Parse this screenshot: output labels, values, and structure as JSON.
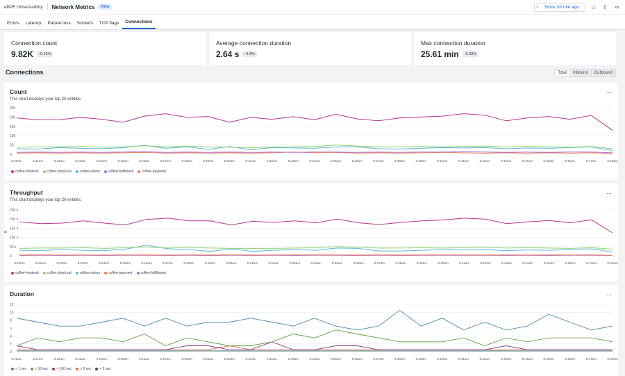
{
  "app": {
    "crumb": "eBPF Observability",
    "title": "Network Metrics",
    "badge": "New"
  },
  "toolbar": {
    "back_icon": "chevron-left-icon",
    "time_range": "Since 30 min ago"
  },
  "tabs": [
    "Errors",
    "Latency",
    "Packet loss",
    "Sockets",
    "TCP flags",
    "Connections"
  ],
  "active_tab": 5,
  "kpis": [
    {
      "label": "Connection count",
      "value": "9.82K",
      "delta": "-0.19%"
    },
    {
      "label": "Average connection duration",
      "value": "2.64 s",
      "delta": "-4.4%"
    },
    {
      "label": "Max connection duration",
      "value": "25.61 min",
      "delta": "-5.03%"
    }
  ],
  "section": {
    "title": "Connections",
    "toggle": [
      "Total",
      "Inbound",
      "Outbound"
    ]
  },
  "charts_text": {
    "count_title": "Count",
    "count_sub": "This chart displays your top 20 entities.",
    "throughput_title": "Throughput",
    "throughput_sub": "This chart displays your top 20 entities.",
    "duration_title": "Duration",
    "more": "..."
  },
  "chart_data": [
    {
      "type": "line",
      "title": "Count",
      "x": [
        "8:20am",
        "8:21am",
        "8:22am",
        "8:23am",
        "8:24am",
        "8:25am",
        "8:26am",
        "8:27am",
        "8:28am",
        "8:29am",
        "8:30am",
        "8:31am",
        "8:32am",
        "8:33am",
        "8:34am",
        "8:35am",
        "8:36am",
        "8:37am",
        "8:38am",
        "8:39am",
        "8:40am",
        "8:41am",
        "8:42am",
        "8:43am",
        "8:44am",
        "8:45am",
        "8:46am",
        "8:47am",
        "8:48am"
      ],
      "yticks": [
        "250",
        "200",
        "150",
        "100",
        "50",
        "0"
      ],
      "ylim": [
        0,
        250
      ],
      "series": [
        {
          "name": "coffee-frontend",
          "color": "#b4348f",
          "values": [
            195,
            185,
            186,
            198,
            188,
            172,
            205,
            218,
            198,
            203,
            172,
            198,
            188,
            202,
            186,
            215,
            190,
            180,
            195,
            200,
            205,
            218,
            210,
            180,
            195,
            203,
            188,
            209,
            128
          ]
        },
        {
          "name": "coffee-checkout",
          "color": "#8fd16b",
          "values": [
            38,
            40,
            40,
            42,
            38,
            40,
            46,
            40,
            44,
            40,
            38,
            36,
            38,
            40,
            42,
            50,
            44,
            40,
            40,
            42,
            40,
            42,
            44,
            40,
            42,
            40,
            38,
            42,
            30
          ]
        },
        {
          "name": "coffee-orders",
          "color": "#56b6d6",
          "values": [
            30,
            28,
            36,
            32,
            30,
            36,
            48,
            32,
            40,
            26,
            42,
            24,
            36,
            34,
            32,
            40,
            40,
            30,
            28,
            32,
            36,
            34,
            36,
            30,
            34,
            32,
            36,
            40,
            20
          ]
        },
        {
          "name": "coffee-fulfillment",
          "color": "#a76fd0",
          "values": [
            10,
            12,
            10,
            12,
            10,
            12,
            14,
            10,
            12,
            10,
            12,
            10,
            12,
            10,
            12,
            12,
            10,
            12,
            10,
            12,
            12,
            14,
            12,
            10,
            12,
            10,
            12,
            12,
            8
          ]
        },
        {
          "name": "coffee-payment",
          "color": "#f07f5a",
          "values": [
            6,
            8,
            6,
            8,
            6,
            8,
            10,
            6,
            8,
            6,
            8,
            6,
            8,
            12,
            8,
            10,
            6,
            8,
            6,
            8,
            10,
            8,
            6,
            8,
            6,
            8,
            6,
            8,
            4
          ]
        }
      ],
      "xlabel_note": "8:4"
    },
    {
      "type": "line",
      "title": "Throughput",
      "x": [
        "8:20am",
        "8:21am",
        "8:22am",
        "8:23am",
        "8:24am",
        "8:25am",
        "8:26am",
        "8:27am",
        "8:28am",
        "8:29am",
        "8:30am",
        "8:31am",
        "8:32am",
        "8:33am",
        "8:34am",
        "8:35am",
        "8:36am",
        "8:37am",
        "8:38am",
        "8:39am",
        "8:40am",
        "8:41am",
        "8:42am",
        "8:43am",
        "8:44am",
        "8:45am",
        "8:46am",
        "8:47am",
        "8:48am"
      ],
      "yticks": [
        "250 k",
        "200 k",
        "150 k",
        "100 k",
        "50 k",
        "0"
      ],
      "ylim": [
        0,
        250000
      ],
      "ylabel": "B",
      "series": [
        {
          "name": "coffee-frontend",
          "color": "#b4348f",
          "values": [
            185000,
            175000,
            178000,
            190000,
            178000,
            168000,
            198000,
            205000,
            190000,
            190000,
            168000,
            188000,
            182000,
            190000,
            180000,
            200000,
            180000,
            170000,
            182000,
            190000,
            195000,
            205000,
            200000,
            175000,
            185000,
            192000,
            180000,
            196000,
            125000
          ]
        },
        {
          "name": "coffee-checkout",
          "color": "#8fd16b",
          "values": [
            40000,
            42000,
            42000,
            44000,
            40000,
            44000,
            48000,
            42000,
            46000,
            42000,
            40000,
            40000,
            40000,
            42000,
            44000,
            50000,
            46000,
            42000,
            42000,
            44000,
            42000,
            44000,
            46000,
            42000,
            44000,
            42000,
            40000,
            44000,
            36000
          ]
        },
        {
          "name": "coffee-orders",
          "color": "#56b6d6",
          "values": [
            30000,
            28000,
            34000,
            30000,
            28000,
            36000,
            58000,
            38000,
            34000,
            24000,
            38000,
            24000,
            30000,
            34000,
            30000,
            42000,
            40000,
            26000,
            26000,
            30000,
            34000,
            32000,
            34000,
            28000,
            32000,
            30000,
            34000,
            38000,
            20000
          ]
        },
        {
          "name": "coffee-payment",
          "color": "#f07f5a",
          "values": [
            4000,
            4500,
            4000,
            4500,
            4000,
            4500,
            5000,
            4000,
            4500,
            4000,
            4500,
            4000,
            4500,
            5000,
            4500,
            5000,
            4000,
            4500,
            4000,
            4500,
            5000,
            4500,
            4000,
            4500,
            4000,
            4500,
            4000,
            4500,
            3000
          ]
        },
        {
          "name": "coffee-fulfillment",
          "color": "#a76fd0",
          "values": [
            2000,
            2500,
            2000,
            2500,
            2000,
            2500,
            3000,
            2000,
            2500,
            2000,
            2500,
            2000,
            2500,
            2000,
            2500,
            2500,
            2000,
            2500,
            2000,
            2500,
            2500,
            3000,
            2500,
            2000,
            2500,
            2000,
            2500,
            2500,
            1500
          ]
        }
      ]
    },
    {
      "type": "line",
      "title": "Duration",
      "x": [
        "8:20am",
        "8:21am",
        "8:22am",
        "8:23am",
        "8:24am",
        "8:25am",
        "8:26am",
        "8:27am",
        "8:28am",
        "8:29am",
        "8:30am",
        "8:31am",
        "8:32am",
        "8:33am",
        "8:34am",
        "8:35am",
        "8:36am",
        "8:37am",
        "8:38am",
        "8:39am",
        "8:40am",
        "8:41am",
        "8:42am",
        "8:43am",
        "8:44am",
        "8:45am",
        "8:46am",
        "8:47am",
        "8:48am"
      ],
      "yticks": [
        "12",
        "10",
        "8",
        "6",
        "4",
        "2",
        "0"
      ],
      "ylim": [
        0,
        12
      ],
      "series": [
        {
          "name": "< 1 sec",
          "color": "#4a89a8",
          "values": [
            8.5,
            7.5,
            6.5,
            6.5,
            7.5,
            8.5,
            6.5,
            8.5,
            6.5,
            7.5,
            7.5,
            8.5,
            7.5,
            6.5,
            8.5,
            6.5,
            5.5,
            6.5,
            10.5,
            6.5,
            8.5,
            5.5,
            7.5,
            5.5,
            6.5,
            9.5,
            7.5,
            5.5,
            6.5
          ]
        },
        {
          "name": "< 10 sec",
          "color": "#5e9e3f",
          "values": [
            1.5,
            3.5,
            2.5,
            3.5,
            3.5,
            2.5,
            4.5,
            1.5,
            3.5,
            2.5,
            1.5,
            1.5,
            2.5,
            4.5,
            3.5,
            5.5,
            4.5,
            3.5,
            2.5,
            2.5,
            2.5,
            3.5,
            1.5,
            3.5,
            2.5,
            3.5,
            3.5,
            3.5,
            2.5
          ]
        },
        {
          "name": "< 100 sec",
          "color": "#8b3a7a",
          "values": [
            1.5,
            0.5,
            0.5,
            0.5,
            0.5,
            0.5,
            0.5,
            0.5,
            1.5,
            1.5,
            0.5,
            0.5,
            2.5,
            0.5,
            0.5,
            1.5,
            1.5,
            0.5,
            0.5,
            0.5,
            0.5,
            0.5,
            0.5,
            1.5,
            0.5,
            0.5,
            0.5,
            0.5,
            0.5
          ]
        },
        {
          "name": "> 5 sec",
          "color": "#d86a3e",
          "values": [
            0.5,
            0.5,
            0.5,
            0.5,
            0.5,
            0.5,
            0.5,
            0.5,
            0.5,
            0.5,
            1.5,
            0.5,
            0.5,
            0.5,
            0.5,
            0.5,
            0.5,
            0.5,
            0.5,
            0.5,
            0.5,
            0.5,
            0.5,
            0.5,
            0.5,
            0.5,
            0.5,
            0.5,
            0.5
          ]
        },
        {
          "name": "< 2 sec",
          "color": "#1c5c5e",
          "values": [
            0.2,
            0.2,
            0.2,
            0.2,
            0.2,
            0.2,
            0.2,
            0.2,
            0.2,
            0.2,
            0.2,
            0.2,
            0.2,
            0.2,
            0.2,
            0.2,
            0.2,
            0.2,
            0.2,
            0.2,
            0.2,
            0.2,
            0.2,
            0.2,
            0.2,
            0.2,
            0.2,
            0.2,
            0.2
          ]
        }
      ]
    }
  ]
}
